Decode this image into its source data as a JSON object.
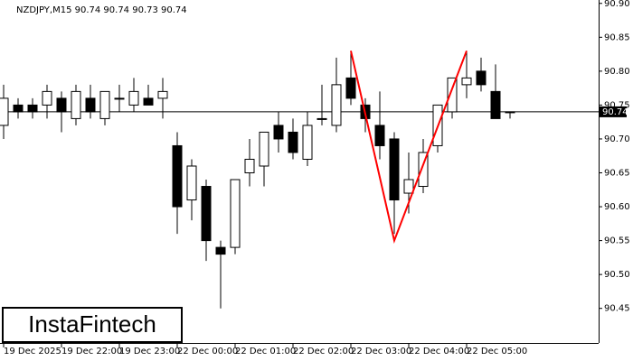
{
  "chart_data": {
    "type": "candlestick",
    "title": "NZDJPY,M15  90.74 90.74 90.73 90.74",
    "categories": [
      "19 Dec 2025",
      null,
      null,
      null,
      "19 Dec 22:00",
      null,
      null,
      null,
      "19 Dec 23:00",
      null,
      null,
      null,
      "22 Dec 00:00",
      null,
      null,
      null,
      "22 Dec 01:00",
      null,
      null,
      null,
      "22 Dec 02:00",
      null,
      null,
      null,
      "22 Dec 03:00",
      null,
      null,
      null,
      "22 Dec 04:00",
      null,
      null,
      null,
      "22 Dec 05:00",
      null,
      null,
      null
    ],
    "open": [
      90.72,
      90.75,
      90.75,
      90.75,
      90.76,
      90.73,
      90.76,
      90.73,
      90.76,
      90.75,
      90.76,
      90.76,
      90.69,
      90.61,
      90.63,
      90.54,
      90.54,
      90.65,
      90.66,
      90.72,
      90.71,
      90.67,
      90.73,
      90.72,
      90.79,
      90.75,
      90.72,
      90.7,
      90.62,
      90.63,
      90.69,
      90.74,
      90.78,
      90.8,
      90.77,
      90.74
    ],
    "high": [
      90.78,
      90.76,
      90.76,
      90.78,
      90.77,
      90.78,
      90.78,
      90.77,
      90.78,
      90.79,
      90.78,
      90.79,
      90.71,
      90.67,
      90.64,
      90.55,
      90.64,
      90.7,
      90.71,
      90.74,
      90.73,
      90.74,
      90.78,
      90.82,
      90.83,
      90.76,
      90.77,
      90.71,
      90.68,
      90.7,
      90.75,
      90.79,
      90.83,
      90.82,
      90.81,
      90.74
    ],
    "low": [
      90.7,
      90.73,
      90.73,
      90.73,
      90.71,
      90.72,
      90.73,
      90.72,
      90.74,
      90.74,
      90.75,
      90.73,
      90.56,
      90.58,
      90.52,
      90.45,
      90.53,
      90.63,
      90.63,
      90.68,
      90.67,
      90.66,
      90.72,
      90.71,
      90.75,
      90.71,
      90.67,
      90.56,
      90.59,
      90.62,
      90.68,
      90.73,
      90.76,
      90.77,
      90.73,
      90.73
    ],
    "close": [
      90.76,
      90.74,
      90.74,
      90.77,
      90.74,
      90.77,
      90.74,
      90.77,
      90.76,
      90.77,
      90.75,
      90.77,
      90.6,
      90.66,
      90.55,
      90.53,
      90.64,
      90.67,
      90.71,
      90.7,
      90.68,
      90.72,
      90.73,
      90.78,
      90.76,
      90.73,
      90.69,
      90.61,
      90.64,
      90.68,
      90.75,
      90.79,
      90.79,
      90.78,
      90.73,
      90.74
    ],
    "up_color": "#ffffff",
    "down_color": "#000000",
    "line_color": "#000000",
    "ylim": [
      90.399,
      90.905
    ],
    "yticks": [
      {
        "value": 90.45,
        "label": "90.45"
      },
      {
        "value": 90.5,
        "label": "90.50"
      },
      {
        "value": 90.55,
        "label": "90.55"
      },
      {
        "value": 90.6,
        "label": "90.60"
      },
      {
        "value": 90.65,
        "label": "90.65"
      },
      {
        "value": 90.7,
        "label": "90.70"
      },
      {
        "value": 90.75,
        "label": "90.75"
      },
      {
        "value": 90.8,
        "label": "90.80"
      },
      {
        "value": 90.85,
        "label": "90.85"
      },
      {
        "value": 90.9,
        "label": "90.90"
      }
    ],
    "last_price": {
      "value": 90.74,
      "label": "90.74"
    },
    "pattern": {
      "color": "#ff0000",
      "x": [
        24,
        27,
        32
      ],
      "values": [
        90.83,
        90.55,
        90.83
      ]
    },
    "logo": "InstaFintech"
  }
}
